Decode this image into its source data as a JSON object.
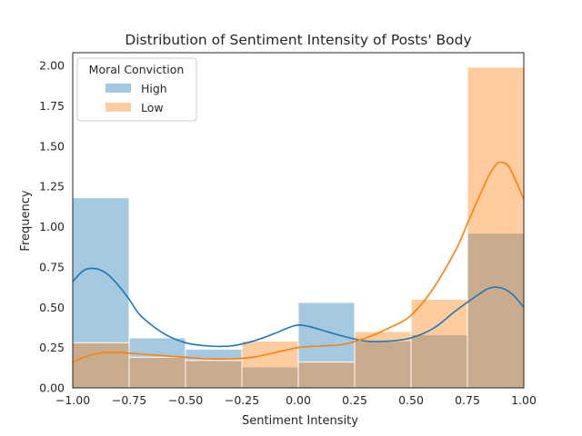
{
  "chart_data": {
    "type": "histogram",
    "title": "Distribution of  Sentiment Intensity of Posts' Body",
    "xlabel": "Sentiment Intensity",
    "ylabel": "Frequency",
    "xlim": [
      -1.0,
      1.0
    ],
    "ylim": [
      0,
      2.08
    ],
    "grid": false,
    "legend_title": "Moral Conviction",
    "legend_position": "top-left",
    "bin_edges": [
      -1.0,
      -0.75,
      -0.5,
      -0.25,
      0.0,
      0.25,
      0.5,
      0.75,
      1.0
    ],
    "x_tick_labels": [
      "−1.00",
      "−0.75",
      "−0.50",
      "−0.25",
      "0.00",
      "0.25",
      "0.50",
      "0.75",
      "1.00"
    ],
    "y_ticks": [
      0.0,
      0.25,
      0.5,
      0.75,
      1.0,
      1.25,
      1.5,
      1.75,
      2.0
    ],
    "y_tick_labels": [
      "0.00",
      "0.25",
      "0.50",
      "0.75",
      "1.00",
      "1.25",
      "1.50",
      "1.75",
      "2.00"
    ],
    "series": [
      {
        "name": "High",
        "color": "#1f77b4",
        "values": [
          1.18,
          0.31,
          0.24,
          0.13,
          0.53,
          0.29,
          0.33,
          0.96
        ],
        "kde": [
          [
            -1.0,
            0.66
          ],
          [
            -0.95,
            0.73
          ],
          [
            -0.9,
            0.74
          ],
          [
            -0.85,
            0.71
          ],
          [
            -0.8,
            0.64
          ],
          [
            -0.75,
            0.55
          ],
          [
            -0.7,
            0.45
          ],
          [
            -0.6,
            0.34
          ],
          [
            -0.5,
            0.28
          ],
          [
            -0.4,
            0.26
          ],
          [
            -0.3,
            0.26
          ],
          [
            -0.2,
            0.29
          ],
          [
            -0.1,
            0.34
          ],
          [
            -0.05,
            0.37
          ],
          [
            0.0,
            0.39
          ],
          [
            0.05,
            0.38
          ],
          [
            0.1,
            0.36
          ],
          [
            0.2,
            0.32
          ],
          [
            0.3,
            0.29
          ],
          [
            0.4,
            0.29
          ],
          [
            0.5,
            0.31
          ],
          [
            0.6,
            0.37
          ],
          [
            0.7,
            0.48
          ],
          [
            0.8,
            0.58
          ],
          [
            0.85,
            0.62
          ],
          [
            0.9,
            0.62
          ],
          [
            0.95,
            0.58
          ],
          [
            1.0,
            0.5
          ]
        ]
      },
      {
        "name": "Low",
        "color": "#ff7f0e",
        "values": [
          0.28,
          0.19,
          0.17,
          0.29,
          0.16,
          0.35,
          0.55,
          1.99
        ],
        "kde": [
          [
            -1.0,
            0.16
          ],
          [
            -0.95,
            0.19
          ],
          [
            -0.9,
            0.21
          ],
          [
            -0.85,
            0.22
          ],
          [
            -0.8,
            0.22
          ],
          [
            -0.7,
            0.21
          ],
          [
            -0.6,
            0.2
          ],
          [
            -0.5,
            0.19
          ],
          [
            -0.4,
            0.18
          ],
          [
            -0.3,
            0.18
          ],
          [
            -0.2,
            0.19
          ],
          [
            -0.1,
            0.22
          ],
          [
            0.0,
            0.25
          ],
          [
            0.1,
            0.26
          ],
          [
            0.2,
            0.27
          ],
          [
            0.3,
            0.31
          ],
          [
            0.4,
            0.37
          ],
          [
            0.5,
            0.45
          ],
          [
            0.6,
            0.62
          ],
          [
            0.7,
            0.86
          ],
          [
            0.75,
            1.02
          ],
          [
            0.8,
            1.18
          ],
          [
            0.85,
            1.33
          ],
          [
            0.88,
            1.39
          ],
          [
            0.9,
            1.4
          ],
          [
            0.93,
            1.38
          ],
          [
            0.96,
            1.3
          ],
          [
            1.0,
            1.17
          ]
        ]
      }
    ]
  }
}
